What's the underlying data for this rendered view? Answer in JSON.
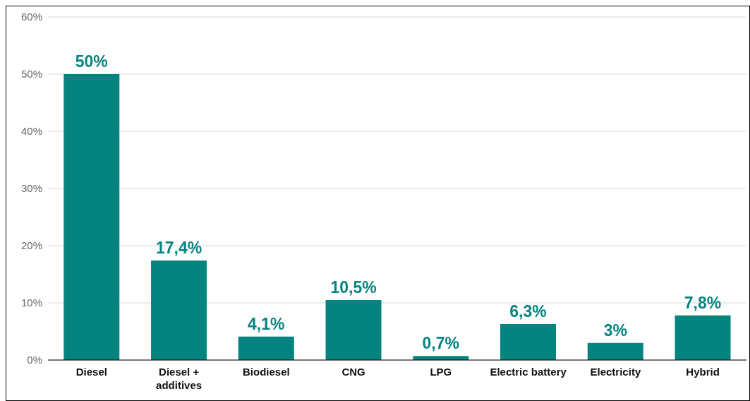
{
  "chart_data": {
    "type": "bar",
    "categories": [
      "Diesel",
      "Diesel + additives",
      "Biodiesel",
      "CNG",
      "LPG",
      "Electric battery",
      "Electricity",
      "Hybrid"
    ],
    "values": [
      50,
      17.4,
      4.1,
      10.5,
      0.7,
      6.3,
      3,
      7.8
    ],
    "value_labels": [
      "50%",
      "17,4%",
      "4,1%",
      "10,5%",
      "0,7%",
      "6,3%",
      "3%",
      "7,8%"
    ],
    "color": "#05847f",
    "ylim": [
      0,
      60
    ],
    "yticks": [
      {
        "value": 0,
        "label": "0%"
      },
      {
        "value": 10,
        "label": "10%"
      },
      {
        "value": 20,
        "label": "20%"
      },
      {
        "value": 30,
        "label": "30%"
      },
      {
        "value": 40,
        "label": "40%"
      },
      {
        "value": 50,
        "label": "50%"
      },
      {
        "value": 60,
        "label": "60%"
      }
    ],
    "grid": "y",
    "legend": false
  }
}
